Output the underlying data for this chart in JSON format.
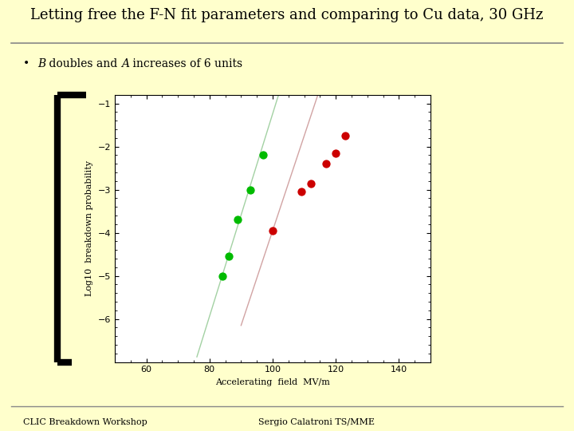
{
  "title": "Letting free the F-N fit parameters and comparing to Cu data, 30 GHz",
  "bullet_B": "B",
  "bullet_mid": " doubles and ",
  "bullet_A": "A",
  "bullet_end": " increases of 6 units",
  "xlim": [
    50,
    150
  ],
  "ylim": [
    -7.0,
    -0.8
  ],
  "yticks": [
    -6,
    -5,
    -4,
    -3,
    -2,
    -1
  ],
  "xticks": [
    60,
    80,
    100,
    120,
    140
  ],
  "bg_color": "#ffffcc",
  "plot_bg": "#ffffff",
  "green_points_x": [
    84,
    86,
    89,
    93,
    97
  ],
  "green_points_y": [
    -5.0,
    -4.55,
    -3.7,
    -3.0,
    -2.2
  ],
  "red_points_x": [
    100,
    109,
    112,
    117,
    120,
    123
  ],
  "red_points_y": [
    -3.95,
    -3.05,
    -2.85,
    -2.4,
    -2.15,
    -1.75
  ],
  "green_color": "#00bb00",
  "red_color": "#cc0000",
  "green_line_color": "#99cc99",
  "red_line_color": "#cc9999",
  "point_size": 55,
  "footer_left": "CLIC Breakdown Workshop",
  "footer_right": "Sergio Calatroni TS/MME"
}
